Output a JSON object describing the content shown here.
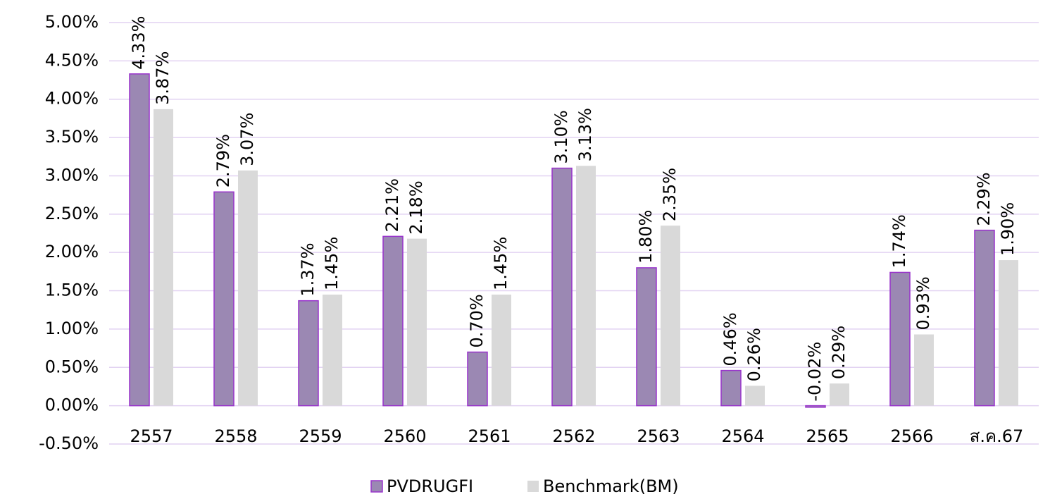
{
  "chart_data": {
    "type": "bar",
    "categories": [
      "2557",
      "2558",
      "2559",
      "2560",
      "2561",
      "2562",
      "2563",
      "2564",
      "2565",
      "2566",
      "ส.ค.67"
    ],
    "series": [
      {
        "name": "PVDRUGFI",
        "color": "#9b88b3",
        "stroke": "#9933cc",
        "values": [
          4.33,
          2.79,
          1.37,
          2.21,
          0.7,
          3.1,
          1.8,
          0.46,
          -0.02,
          1.74,
          2.29
        ],
        "value_labels": [
          "4.33%",
          "2.79%",
          "1.37%",
          "2.21%",
          "0.70%",
          "3.10%",
          "1.80%",
          "0.46%",
          "-0.02%",
          "1.74%",
          "2.29%"
        ]
      },
      {
        "name": "Benchmark(BM)",
        "color": "#d9d9d9",
        "values": [
          3.87,
          3.07,
          1.45,
          2.18,
          1.45,
          3.13,
          2.35,
          0.26,
          0.29,
          0.93,
          1.9
        ],
        "value_labels": [
          "3.87%",
          "3.07%",
          "1.45%",
          "2.18%",
          "1.45%",
          "3.13%",
          "2.35%",
          "0.26%",
          "0.29%",
          "0.93%",
          "1.90%"
        ]
      }
    ],
    "ylim": [
      -0.5,
      5
    ],
    "yticks": [
      {
        "value": -0.5,
        "label": "-0.50%"
      },
      {
        "value": 0,
        "label": "0.00%"
      },
      {
        "value": 0.5,
        "label": "0.50%"
      },
      {
        "value": 1,
        "label": "1.00%"
      },
      {
        "value": 1.5,
        "label": "1.50%"
      },
      {
        "value": 2,
        "label": "2.00%"
      },
      {
        "value": 2.5,
        "label": "2.50%"
      },
      {
        "value": 3,
        "label": "3.00%"
      },
      {
        "value": 3.5,
        "label": "3.50%"
      },
      {
        "value": 4,
        "label": "4.00%"
      },
      {
        "value": 4.5,
        "label": "4.50%"
      },
      {
        "value": 5,
        "label": "5.00%"
      }
    ],
    "grid": true,
    "legend": "bottom"
  }
}
